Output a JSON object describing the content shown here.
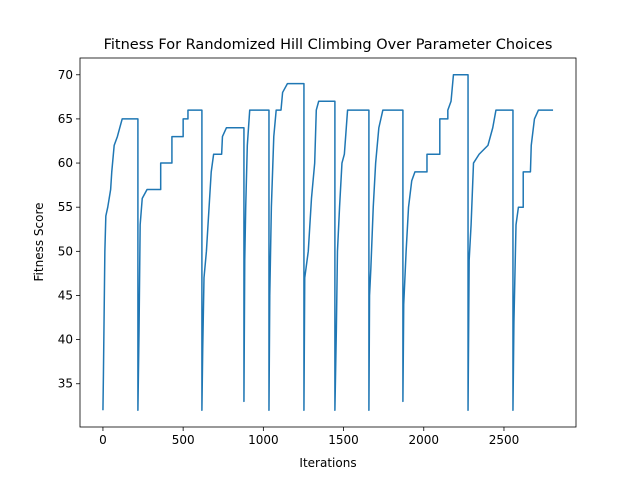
{
  "chart_data": {
    "type": "line",
    "title": "Fitness For Randomized Hill Climbing Over Parameter Choices",
    "x_label": "Iterations",
    "y_label": "Fitness Score",
    "color": "#1f77b4",
    "x": [
      0,
      3,
      12,
      18,
      30,
      48,
      55,
      70,
      90,
      105,
      120,
      218,
      218,
      225,
      232,
      245,
      275,
      360,
      360,
      430,
      430,
      500,
      500,
      530,
      530,
      617,
      617,
      622,
      630,
      645,
      665,
      675,
      690,
      740,
      745,
      770,
      879,
      879,
      884,
      890,
      900,
      915,
      1035,
      1035,
      1040,
      1050,
      1065,
      1080,
      1110,
      1120,
      1150,
      1253,
      1253,
      1258,
      1280,
      1300,
      1320,
      1330,
      1345,
      1446,
      1446,
      1455,
      1462,
      1475,
      1490,
      1505,
      1525,
      1658,
      1658,
      1662,
      1670,
      1685,
      1700,
      1720,
      1745,
      1870,
      1870,
      1875,
      1890,
      1905,
      1925,
      1945,
      2020,
      2020,
      2100,
      2100,
      2150,
      2150,
      2170,
      2185,
      2276,
      2276,
      2283,
      2295,
      2310,
      2345,
      2400,
      2430,
      2450,
      2556,
      2556,
      2562,
      2575,
      2590,
      2620,
      2620,
      2665,
      2670,
      2690,
      2715,
      2806
    ],
    "values": [
      32,
      36,
      50,
      54,
      55,
      57,
      59,
      62,
      63,
      64,
      65,
      65,
      32,
      41,
      53,
      56,
      57,
      57,
      60,
      60,
      63,
      63,
      65,
      65,
      66,
      66,
      32,
      39,
      47,
      50,
      56,
      59,
      61,
      61,
      63,
      64,
      64,
      33,
      49,
      55,
      62,
      66,
      66,
      32,
      45,
      55,
      63,
      66,
      66,
      68,
      69,
      69,
      32,
      47,
      50,
      56,
      60,
      66,
      67,
      67,
      32,
      41,
      50,
      55,
      60,
      61,
      66,
      66,
      32,
      45,
      48,
      55,
      60,
      64,
      66,
      66,
      33,
      44,
      50,
      55,
      58,
      59,
      59,
      61,
      61,
      65,
      65,
      66,
      67,
      70,
      70,
      32,
      49,
      53,
      60,
      61,
      62,
      64,
      66,
      66,
      32,
      42,
      53,
      55,
      55,
      59,
      59,
      62,
      65,
      66,
      66
    ],
    "xlim": [
      -143,
      2949
    ],
    "ylim": [
      30.1,
      71.9
    ],
    "xticks": [
      0,
      500,
      1000,
      1500,
      2000,
      2500
    ],
    "yticks": [
      35,
      40,
      45,
      50,
      55,
      60,
      65,
      70
    ]
  }
}
